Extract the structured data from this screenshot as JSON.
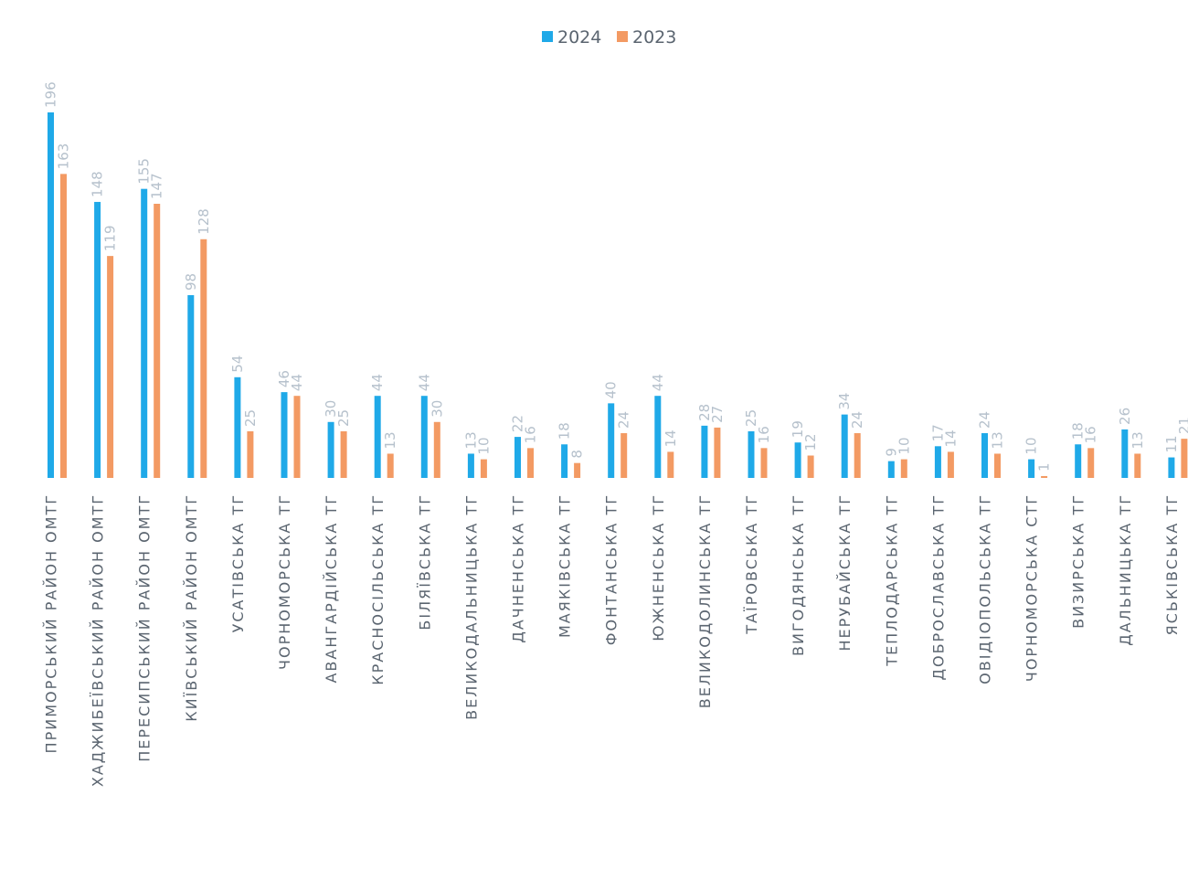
{
  "chart_data": {
    "type": "bar",
    "legend_position": "top-center",
    "grid": false,
    "ylim": [
      0,
      200
    ],
    "categories": [
      "ПРИМОРСЬКИЙ РАЙОН ОМТГ",
      "ХАДЖИБЕЇВСЬКИЙ РАЙОН ОМТГ",
      "ПЕРЕСИПСЬКИЙ РАЙОН ОМТГ",
      "КИЇВСЬКИЙ РАЙОН ОМТГ",
      "УСАТІВСЬКА ТГ",
      "ЧОРНОМОРСЬКА ТГ",
      "АВАНГАРДІЙСЬКА ТГ",
      "КРАСНОСІЛЬСЬКА ТГ",
      "БІЛЯЇВСЬКА ТГ",
      "ВЕЛИКОДАЛЬНИЦЬКА ТГ",
      "ДАЧНЕНСЬКА ТГ",
      "МАЯКІВСЬКА ТГ",
      "ФОНТАНСЬКА ТГ",
      "ЮЖНЕНСЬКА ТГ",
      "ВЕЛИКОДОЛИНСЬКА ТГ",
      "ТАЇРОВСЬКА ТГ",
      "ВИГОДЯНСЬКА ТГ",
      "НЕРУБАЙСЬКА ТГ",
      "ТЕПЛОДАРСЬКА ТГ",
      "ДОБРОСЛАВСЬКА ТГ",
      "ОВІДІОПОЛЬСЬКА ТГ",
      "ЧОРНОМОРСЬКА СТГ",
      "ВИЗИРСЬКА ТГ",
      "ДАЛЬНИЦЬКА ТГ",
      "ЯСЬКІВСЬКА ТГ"
    ],
    "series": [
      {
        "name": "2024",
        "color": "#1fa9e8",
        "values": [
          196,
          148,
          155,
          98,
          54,
          46,
          30,
          44,
          44,
          13,
          22,
          18,
          40,
          44,
          28,
          25,
          19,
          34,
          9,
          17,
          24,
          10,
          18,
          26,
          11
        ]
      },
      {
        "name": "2023",
        "color": "#f39a63",
        "values": [
          163,
          119,
          147,
          128,
          25,
          44,
          25,
          13,
          30,
          10,
          16,
          8,
          24,
          14,
          27,
          16,
          12,
          24,
          10,
          14,
          13,
          1,
          16,
          13,
          21
        ]
      }
    ]
  }
}
